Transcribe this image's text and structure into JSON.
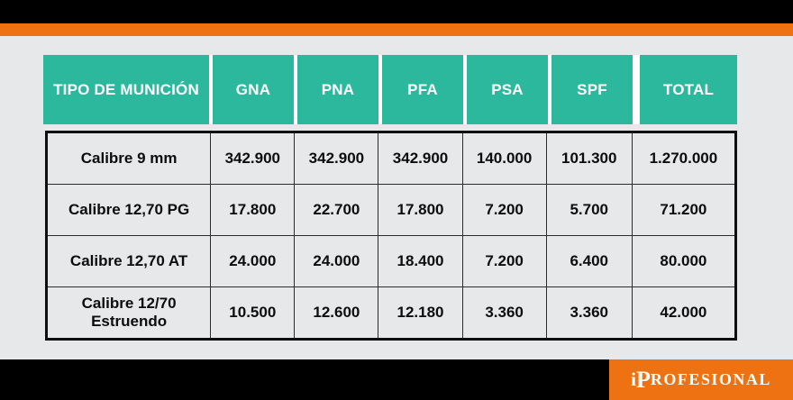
{
  "theme": {
    "orange": "#ee7211",
    "teal": "#2cb89d",
    "bar_black": "#000000",
    "page_bg": "#e7e8ea",
    "header_text": "#ffffff",
    "cell_text": "#0d0d0d"
  },
  "brand": {
    "name": "iProfesional",
    "prefix": "i",
    "cap": "P",
    "rest": "ROFESIONAL"
  },
  "chart_data": {
    "type": "table",
    "title": "",
    "columns": [
      "TIPO DE MUNICIÓN",
      "GNA",
      "PNA",
      "PFA",
      "PSA",
      "SPF",
      "TOTAL"
    ],
    "rows": [
      {
        "label": "Calibre 9 mm",
        "values": [
          "342.900",
          "342.900",
          "342.900",
          "140.000",
          "101.300",
          "1.270.000"
        ]
      },
      {
        "label": "Calibre 12,70 PG",
        "values": [
          "17.800",
          "22.700",
          "17.800",
          "7.200",
          "5.700",
          "71.200"
        ]
      },
      {
        "label": "Calibre 12,70 AT",
        "values": [
          "24.000",
          "24.000",
          "18.400",
          "7.200",
          "6.400",
          "80.000"
        ]
      },
      {
        "label": "Calibre 12/70 Estruendo",
        "values": [
          "10.500",
          "12.600",
          "12.180",
          "3.360",
          "3.360",
          "42.000"
        ]
      }
    ]
  }
}
